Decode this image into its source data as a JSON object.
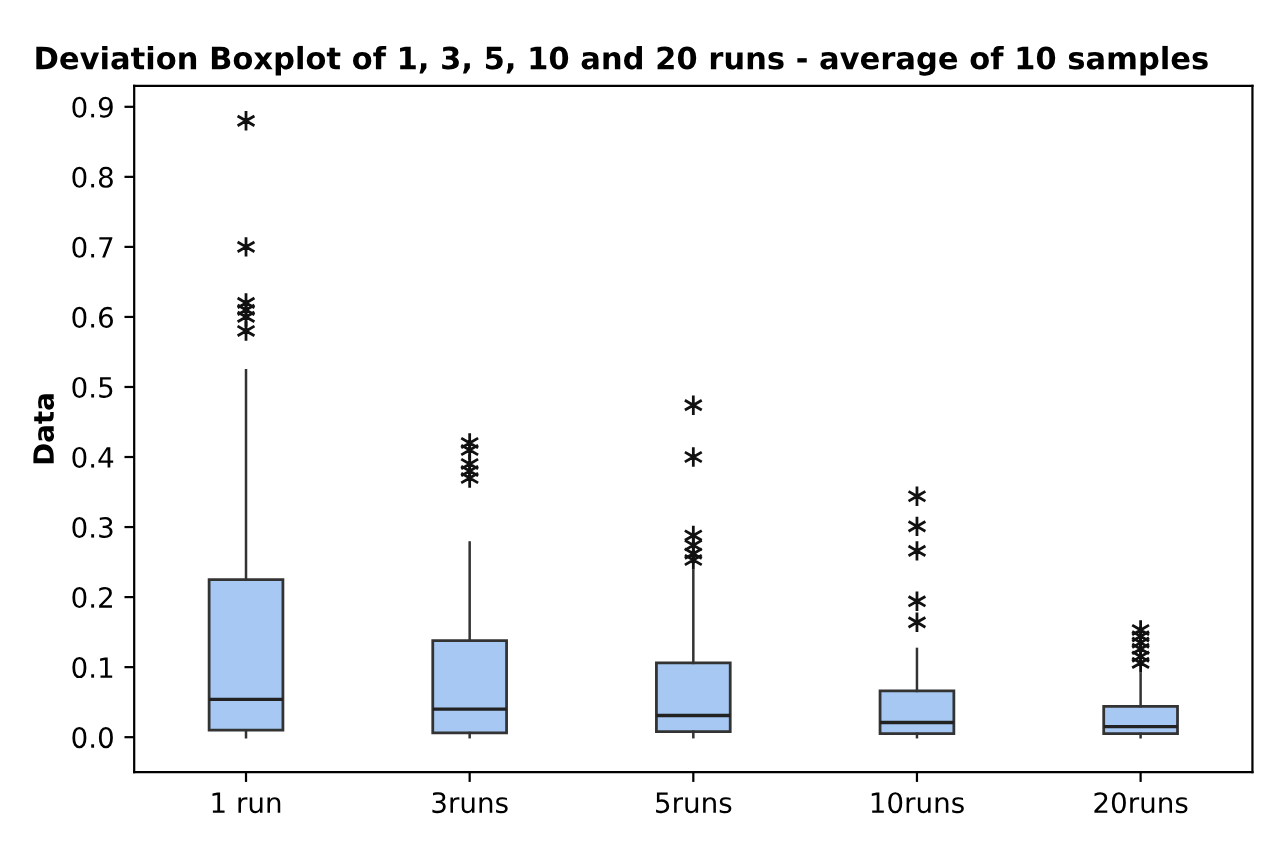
{
  "chart_data": {
    "type": "box",
    "title": "Deviation Boxplot of 1, 3, 5, 10 and 20 runs - average of 10 samples",
    "ylabel": "Data",
    "categories": [
      "1 run",
      "3runs",
      "5runs",
      "10runs",
      "20runs"
    ],
    "color": "#a6c8f2",
    "marker": "star",
    "grid": false,
    "legend": false,
    "ylim": [
      -0.05,
      0.93
    ],
    "yticks": [
      {
        "value": 0,
        "label": "0.0"
      },
      0.1,
      0.2,
      0.3,
      0.4,
      0.5,
      0.6,
      0.7,
      0.8,
      0.9
    ],
    "boxes": [
      {
        "low": 0.0,
        "q1": 0.01,
        "median": 0.054,
        "q3": 0.225,
        "high": 0.524,
        "outliers": [
          0.88,
          0.7,
          0.62,
          0.61,
          0.6,
          0.58
        ]
      },
      {
        "low": 0.0,
        "q1": 0.006,
        "median": 0.04,
        "q3": 0.138,
        "high": 0.278,
        "outliers": [
          0.42,
          0.41,
          0.39,
          0.38,
          0.37
        ]
      },
      {
        "low": 0.0,
        "q1": 0.008,
        "median": 0.031,
        "q3": 0.106,
        "high": 0.237,
        "outliers": [
          0.474,
          0.4,
          0.288,
          0.274,
          0.262,
          0.253
        ]
      },
      {
        "low": 0.0,
        "q1": 0.005,
        "median": 0.021,
        "q3": 0.066,
        "high": 0.126,
        "outliers": [
          0.344,
          0.301,
          0.266,
          0.194,
          0.164
        ]
      },
      {
        "low": 0.0,
        "q1": 0.005,
        "median": 0.015,
        "q3": 0.044,
        "high": 0.09,
        "outliers": [
          0.153,
          0.144,
          0.135,
          0.126,
          0.115,
          0.106
        ]
      }
    ]
  }
}
